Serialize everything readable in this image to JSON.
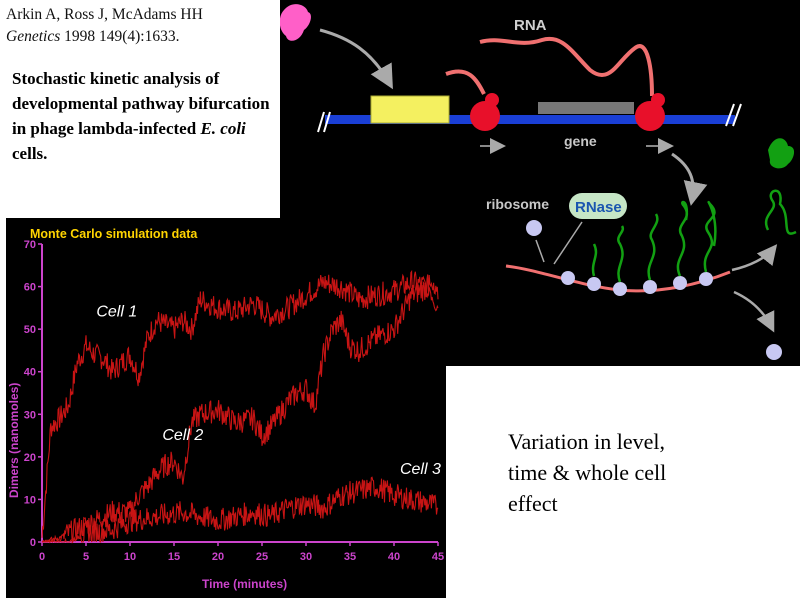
{
  "citation": {
    "authors": "Arkin A, Ross J, McAdams HH",
    "journal": "Genetics",
    "ref": "1998 149(4):1633."
  },
  "title": {
    "part1": "Stochastic kinetic analysis of developmental pathway bifurcation in phage lambda-infected ",
    "organism": "E. coli",
    "part2": " cells."
  },
  "diagram": {
    "rna_label": "RNA",
    "gene_label": "gene",
    "ribosome_label": "ribosome",
    "rnase_label": "RNase"
  },
  "note": {
    "line1": "Variation in level,",
    "line2": "time & whole cell",
    "line3": "effect"
  },
  "colors": {
    "trace": "#c81414",
    "axis": "#cc44cc",
    "chart_title": "#ffd400",
    "dna": "#1a3fd6",
    "rna": "#f07070",
    "ribosome": "#e8102a",
    "protein": "#12a012"
  },
  "chart_data": {
    "type": "line",
    "title": "Monte Carlo simulation data",
    "xlabel": "Time (minutes)",
    "ylabel": "Dimers (nanomoles)",
    "xlim": [
      0,
      45
    ],
    "ylim": [
      0,
      70
    ],
    "xticks": [
      0,
      5,
      10,
      15,
      20,
      25,
      30,
      35,
      40,
      45
    ],
    "yticks": [
      0,
      10,
      20,
      30,
      40,
      50,
      60,
      70
    ],
    "grid": false,
    "annotations": [
      "Cell 1",
      "Cell 2",
      "Cell 3"
    ],
    "series": [
      {
        "name": "Cell 1",
        "x": [
          0,
          1,
          2,
          3,
          4,
          5,
          6,
          7,
          8,
          9,
          10,
          11,
          12,
          13,
          14,
          15,
          16,
          17,
          18,
          20,
          22,
          24,
          26,
          28,
          30,
          32,
          34,
          36,
          38,
          40,
          42,
          44,
          45
        ],
        "y": [
          1,
          27,
          29,
          32,
          42,
          46,
          44,
          43,
          40,
          42,
          44,
          39,
          48,
          52,
          51,
          50,
          52,
          50,
          57,
          55,
          54,
          56,
          53,
          55,
          58,
          61,
          60,
          57,
          58,
          59,
          61,
          60,
          55
        ]
      },
      {
        "name": "Cell 2",
        "x": [
          0,
          2,
          4,
          6,
          8,
          10,
          11,
          12,
          13,
          14,
          15,
          16,
          17,
          18,
          20,
          22,
          24,
          25,
          26,
          28,
          29,
          30,
          31,
          32,
          33,
          34,
          35,
          36,
          38,
          40,
          42,
          44,
          45
        ],
        "y": [
          0,
          1,
          3,
          5,
          7,
          7,
          11,
          13,
          16,
          18,
          19,
          15,
          28,
          30,
          31,
          28,
          29,
          25,
          27,
          33,
          35,
          36,
          32,
          44,
          50,
          52,
          46,
          45,
          48,
          50,
          58,
          60,
          57
        ]
      },
      {
        "name": "Cell 3",
        "x": [
          0,
          3,
          5,
          8,
          10,
          13,
          16,
          20,
          22,
          24,
          26,
          28,
          30,
          32,
          34,
          36,
          38,
          40,
          42,
          44,
          45
        ],
        "y": [
          0,
          0,
          2,
          3,
          5,
          6,
          7,
          5,
          6,
          7,
          6,
          8,
          9,
          8,
          11,
          12,
          13,
          11,
          10,
          9,
          8
        ]
      }
    ]
  }
}
